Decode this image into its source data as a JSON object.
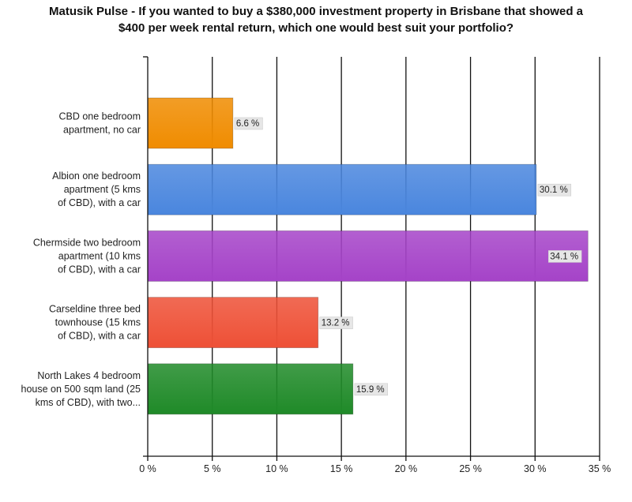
{
  "chart_data": {
    "type": "bar",
    "orientation": "horizontal",
    "title_lines": [
      "Matusik Pulse - If you wanted to buy a $380,000 investment property in Brisbane that showed a",
      "$400 per week rental return, which one would best suit your portfolio?"
    ],
    "categories": [
      [
        "CBD one bedroom",
        "apartment, no car"
      ],
      [
        "Albion one bedroom",
        "apartment (5 kms",
        "of CBD), with a car"
      ],
      [
        "Chermside two bedroom",
        "apartment (10 kms",
        "of CBD), with a car"
      ],
      [
        "Carseldine three bed",
        "townhouse (15 kms",
        "of CBD), with a car"
      ],
      [
        "North Lakes 4 bedroom",
        "house on 500 sqm land (25",
        "kms of CBD), with two..."
      ]
    ],
    "values": [
      6.6,
      30.1,
      34.1,
      13.2,
      15.9
    ],
    "value_labels": [
      "6.6 %",
      "30.1 %",
      "34.1 %",
      "13.2 %",
      "15.9 %"
    ],
    "bar_colors": [
      "#f08c00",
      "#4a86de",
      "#a543c8",
      "#ee5036",
      "#1f8a28"
    ],
    "xlim": [
      0,
      35
    ],
    "x_ticks": [
      0,
      5,
      10,
      15,
      20,
      25,
      30,
      35
    ],
    "x_tick_labels": [
      "0 %",
      "5 %",
      "10 %",
      "15 %",
      "20 %",
      "25 %",
      "30 %",
      "35 %"
    ],
    "grid": true,
    "legend": "none"
  }
}
